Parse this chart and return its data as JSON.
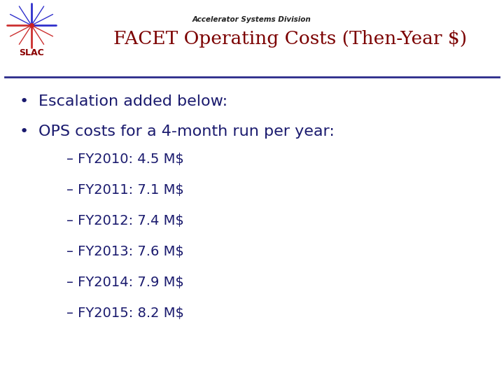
{
  "title": "FACET Operating Costs (Then-Year $)",
  "subtitle": "Accelerator Systems Division",
  "title_color": "#7B0000",
  "subtitle_color": "#222222",
  "bullet1": "Escalation added below:",
  "bullet2": "OPS costs for a 4-month run per year:",
  "sub_items": [
    "– FY2010: 4.5 M$",
    "– FY2011: 7.1 M$",
    "– FY2012: 7.4 M$",
    "– FY2013: 7.6 M$",
    "– FY2014: 7.9 M$",
    "– FY2015: 8.2 M$"
  ],
  "text_color": "#1a1a6e",
  "bg_color": "#ffffff",
  "line_color": "#2a2a8a",
  "subtitle_fontsize": 7.5,
  "title_fontsize": 19,
  "bullet_fontsize": 16,
  "sub_fontsize": 14
}
